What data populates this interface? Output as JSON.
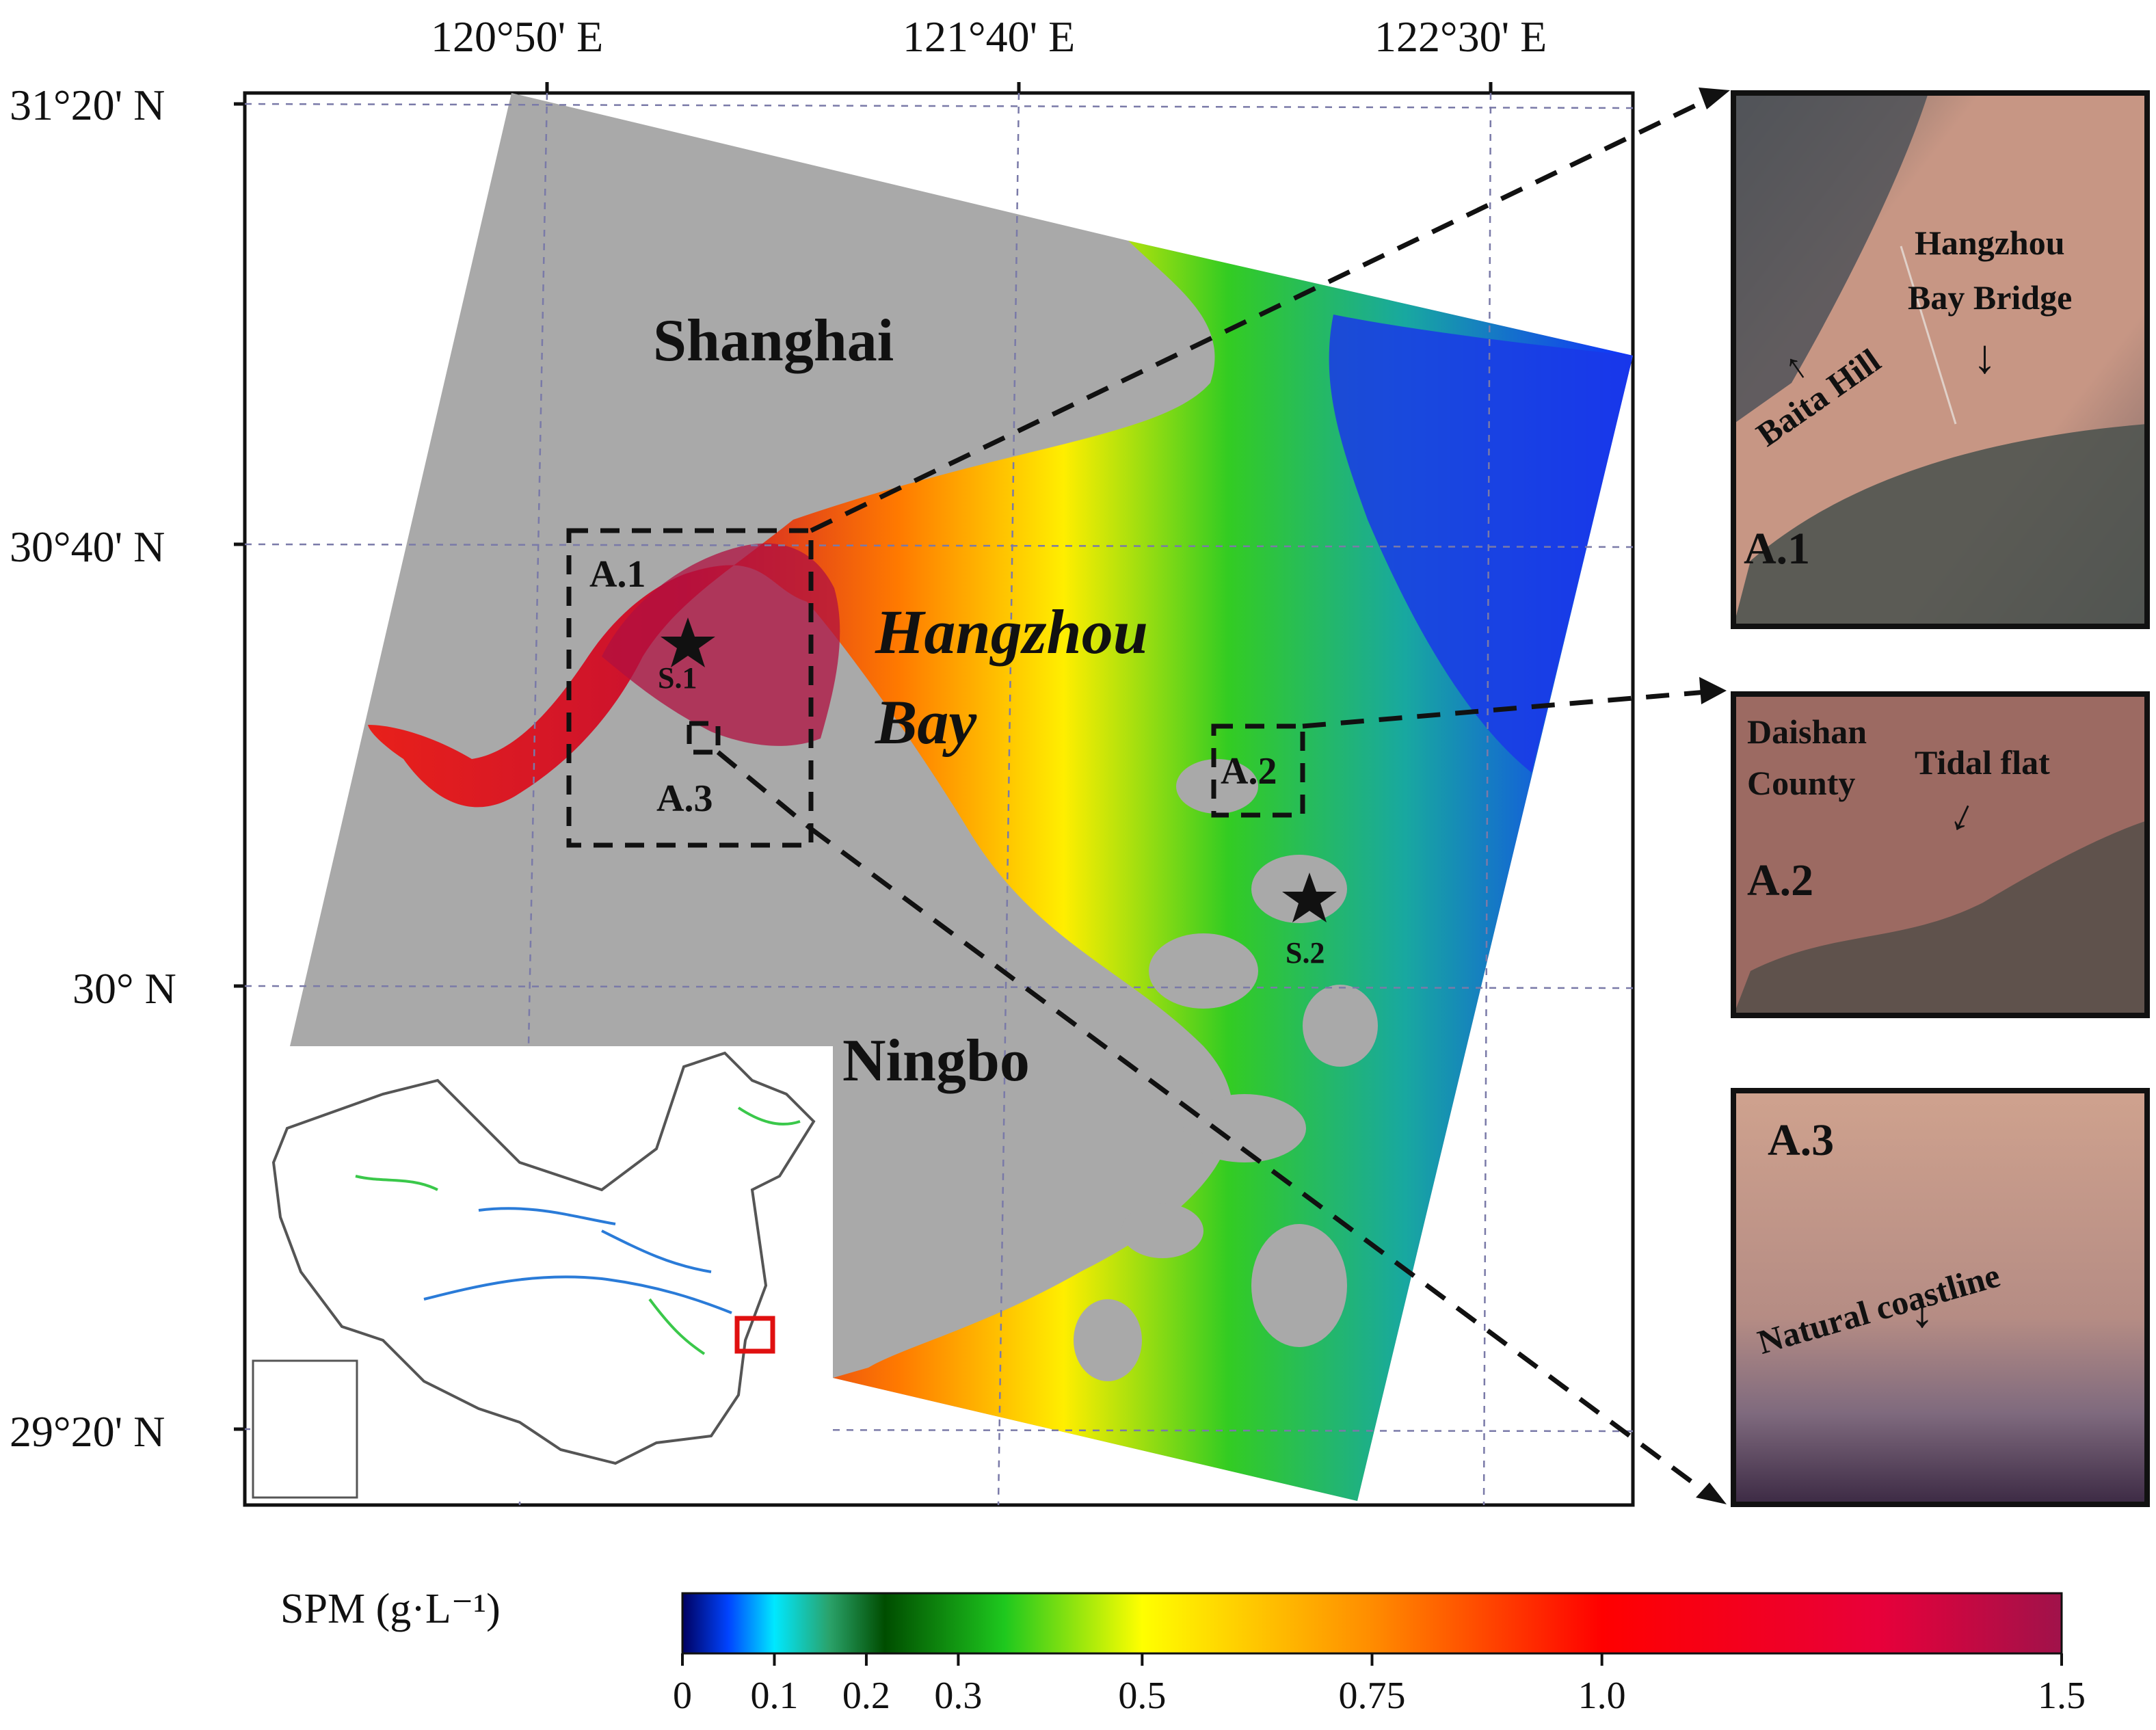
{
  "map": {
    "lon_labels": [
      "120°50' E",
      "121°40' E",
      "122°30' E"
    ],
    "lat_labels": [
      "31°20' N",
      "30°40' N",
      "30° N",
      "29°20' N"
    ],
    "places": {
      "shanghai": "Shanghai",
      "ningbo": "Ningbo",
      "bay_line1": "Hangzhou",
      "bay_line2": "Bay"
    },
    "boxes": {
      "a1": "A.1",
      "a2": "A.2",
      "a3": "A.3"
    },
    "sites": {
      "s1": "S.1",
      "s2": "S.2"
    }
  },
  "insets": {
    "a1": {
      "tag": "A.1",
      "bridge_line1": "Hangzhou",
      "bridge_line2": "Bay Bridge",
      "hill": "Baita Hill"
    },
    "a2": {
      "tag": "A.2",
      "county_line1": "Daishan",
      "county_line2": "County",
      "flat": "Tidal flat"
    },
    "a3": {
      "tag": "A.3",
      "coast": "Natural coastline"
    }
  },
  "colorbar": {
    "label": "SPM (g·L⁻¹)",
    "ticks": [
      "0",
      "0.1",
      "0.2",
      "0.3",
      "0.5",
      "0.75",
      "1.0",
      "1.5"
    ],
    "tick_values": [
      0,
      0.1,
      0.2,
      0.3,
      0.5,
      0.75,
      1.0,
      1.5
    ],
    "range": [
      0,
      1.5
    ],
    "stops": [
      {
        "v": 0.0,
        "c": "#000060"
      },
      {
        "v": 0.05,
        "c": "#0044ff"
      },
      {
        "v": 0.1,
        "c": "#00e8ff"
      },
      {
        "v": 0.16,
        "c": "#2aa26a"
      },
      {
        "v": 0.22,
        "c": "#004d00"
      },
      {
        "v": 0.35,
        "c": "#1ec81e"
      },
      {
        "v": 0.5,
        "c": "#ffff00"
      },
      {
        "v": 0.75,
        "c": "#ff8c00"
      },
      {
        "v": 1.0,
        "c": "#ff0000"
      },
      {
        "v": 1.3,
        "c": "#e8003a"
      },
      {
        "v": 1.5,
        "c": "#a0124a"
      }
    ]
  }
}
